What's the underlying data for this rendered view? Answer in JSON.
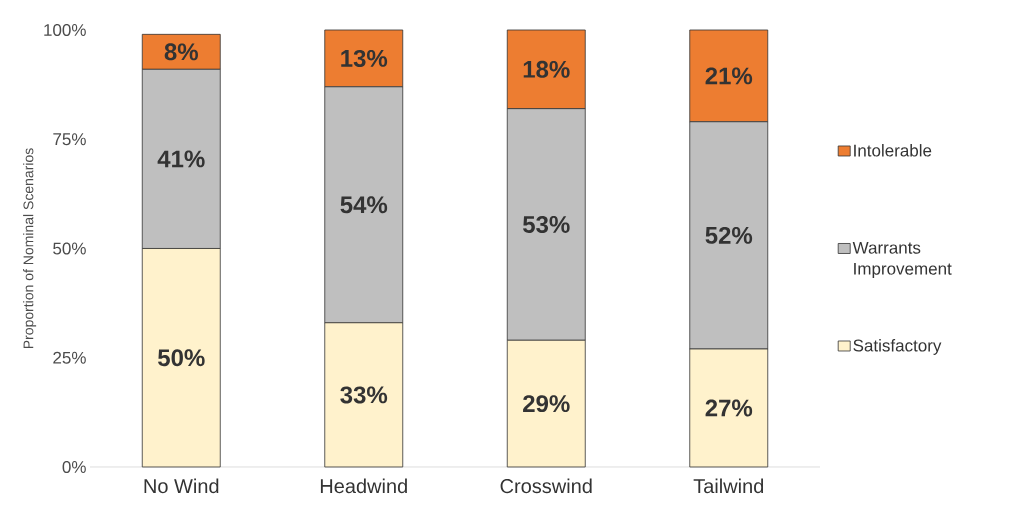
{
  "chart_data": {
    "type": "bar",
    "stacked": true,
    "ylabel": "Proportion of Nominal Scenarios",
    "categories": [
      "No Wind",
      "Headwind",
      "Crosswind",
      "Tailwind"
    ],
    "series": [
      {
        "name": "Satisfactory",
        "color": "#fff2cc",
        "values": [
          50,
          33,
          29,
          27
        ],
        "value_labels": [
          "50%",
          "33%",
          "29%",
          "27%"
        ]
      },
      {
        "name": "Warrants Improvement",
        "color": "#bfbfbf",
        "values": [
          41,
          54,
          53,
          52
        ],
        "value_labels": [
          "41%",
          "54%",
          "53%",
          "52%"
        ]
      },
      {
        "name": "Intolerable",
        "color": "#ed7d31",
        "values": [
          8,
          13,
          18,
          21
        ],
        "value_labels": [
          "8%",
          "13%",
          "18%",
          "21%"
        ]
      }
    ],
    "ylim": [
      0,
      100
    ],
    "yticks": [
      {
        "value": 0,
        "label": "0%"
      },
      {
        "value": 25,
        "label": "25%"
      },
      {
        "value": 50,
        "label": "50%"
      },
      {
        "value": 75,
        "label": "75%"
      },
      {
        "value": 100,
        "label": "100%"
      }
    ],
    "grid": false,
    "legend": "right"
  }
}
